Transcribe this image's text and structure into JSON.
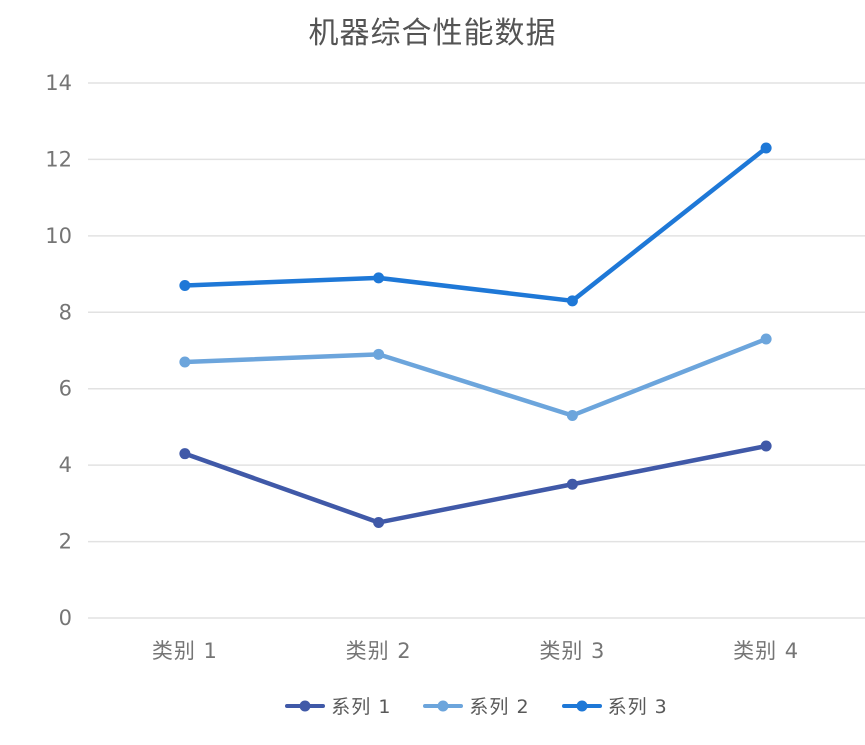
{
  "title": "机器综合性能数据",
  "chart_data": {
    "type": "line",
    "title": "机器综合性能数据",
    "categories": [
      "类别 1",
      "类别 2",
      "类别 3",
      "类别 4"
    ],
    "series": [
      {
        "name": "系列 1",
        "color": "#4059A8",
        "values": [
          4.3,
          2.5,
          3.5,
          4.5
        ]
      },
      {
        "name": "系列 2",
        "color": "#6CA5DC",
        "values": [
          6.7,
          6.9,
          5.3,
          7.3
        ]
      },
      {
        "name": "系列 3",
        "color": "#1E78D7",
        "values": [
          8.7,
          8.9,
          8.3,
          12.3
        ]
      }
    ],
    "ylim": [
      0,
      14
    ],
    "yticks": [
      0,
      2,
      4,
      6,
      8,
      10,
      12,
      14
    ],
    "grid": true,
    "legend_position": "bottom",
    "colors": {
      "gridline": "#E2E2E2",
      "axis_text": "#757575",
      "title_text": "#545454",
      "legend_text": "#595959",
      "background": "#FFFFFF"
    }
  }
}
